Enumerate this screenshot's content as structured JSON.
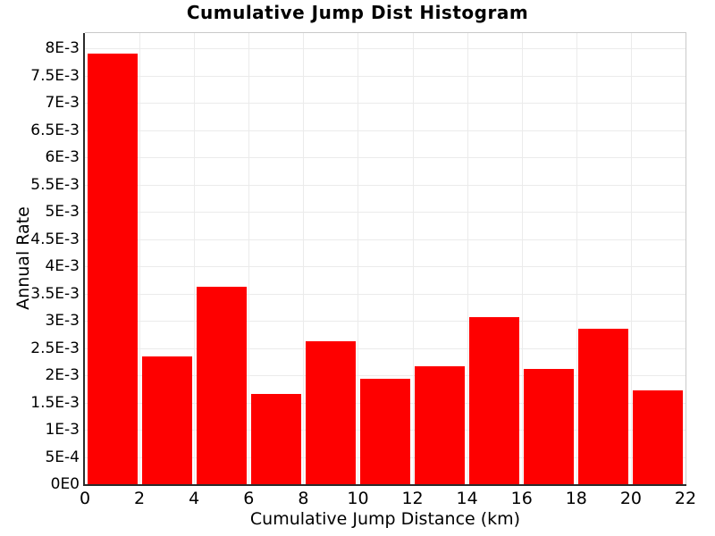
{
  "colors": {
    "bar": "#fe0000",
    "grid": "#ebebeb",
    "axis": "#2b2b2b",
    "border": "#c9c9c9",
    "background": "#ffffff",
    "text": "#000000"
  },
  "chart_data": {
    "type": "bar",
    "title": "Cumulative Jump Dist Histogram",
    "xlabel": "Cumulative Jump Distance (km)",
    "ylabel": "Annual Rate",
    "xlim": [
      0,
      22
    ],
    "ylim": [
      0,
      0.008
    ],
    "grid": true,
    "legend": null,
    "bin_width_km": 2,
    "bin_edges_km": [
      0,
      2,
      4,
      6,
      8,
      10,
      12,
      14,
      16,
      18,
      20,
      22
    ],
    "categories": [
      "0-2",
      "2-4",
      "4-6",
      "6-8",
      "8-10",
      "10-12",
      "12-14",
      "14-16",
      "16-18",
      "18-20",
      "20-22"
    ],
    "values": [
      0.0079,
      0.00235,
      0.00362,
      0.00165,
      0.00262,
      0.00193,
      0.00216,
      0.00307,
      0.00212,
      0.00286,
      0.00172
    ],
    "x_ticks": [
      0,
      2,
      4,
      6,
      8,
      10,
      12,
      14,
      16,
      18,
      20,
      22
    ],
    "y_ticks": [
      {
        "value": 0.0,
        "label": "0E0"
      },
      {
        "value": 0.0005,
        "label": "5E-4"
      },
      {
        "value": 0.001,
        "label": "1E-3"
      },
      {
        "value": 0.0015,
        "label": "1.5E-3"
      },
      {
        "value": 0.002,
        "label": "2E-3"
      },
      {
        "value": 0.0025,
        "label": "2.5E-3"
      },
      {
        "value": 0.003,
        "label": "3E-3"
      },
      {
        "value": 0.0035,
        "label": "3.5E-3"
      },
      {
        "value": 0.004,
        "label": "4E-3"
      },
      {
        "value": 0.0045,
        "label": "4.5E-3"
      },
      {
        "value": 0.005,
        "label": "5E-3"
      },
      {
        "value": 0.0055,
        "label": "5.5E-3"
      },
      {
        "value": 0.006,
        "label": "6E-3"
      },
      {
        "value": 0.0065,
        "label": "6.5E-3"
      },
      {
        "value": 0.007,
        "label": "7E-3"
      },
      {
        "value": 0.0075,
        "label": "7.5E-3"
      },
      {
        "value": 0.008,
        "label": "8E-3"
      }
    ]
  }
}
